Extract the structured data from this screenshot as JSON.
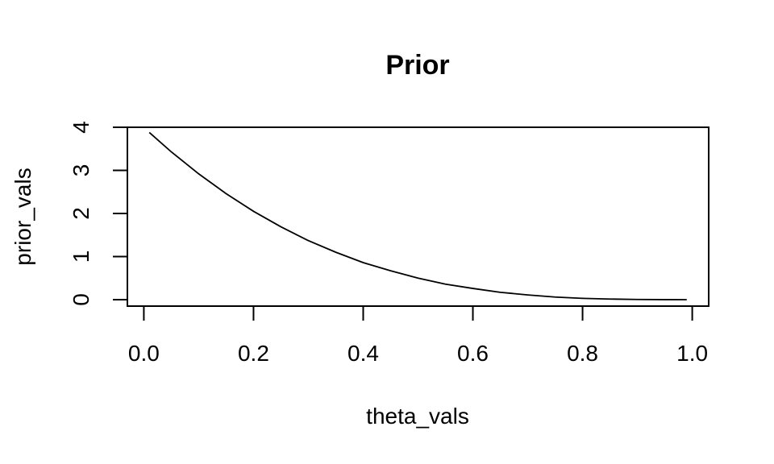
{
  "chart_data": {
    "type": "line",
    "title": "Prior",
    "xlabel": "theta_vals",
    "ylabel": "prior_vals",
    "xlim": [
      -0.03,
      1.03
    ],
    "ylim": [
      -0.15,
      4.0
    ],
    "x_ticks": [
      0.0,
      0.2,
      0.4,
      0.6,
      0.8,
      1.0
    ],
    "x_tick_labels": [
      "0.0",
      "0.2",
      "0.4",
      "0.6",
      "0.8",
      "1.0"
    ],
    "y_ticks": [
      0,
      1,
      2,
      3,
      4
    ],
    "y_tick_labels": [
      "0",
      "1",
      "2",
      "3",
      "4"
    ],
    "grid": false,
    "series": [
      {
        "color": "#000000",
        "x": [
          0.01,
          0.05,
          0.1,
          0.15,
          0.2,
          0.25,
          0.3,
          0.35,
          0.4,
          0.45,
          0.5,
          0.55,
          0.6,
          0.65,
          0.7,
          0.75,
          0.8,
          0.85,
          0.9,
          0.95,
          0.99
        ],
        "y": [
          3.88,
          3.43,
          2.92,
          2.46,
          2.05,
          1.69,
          1.37,
          1.1,
          0.86,
          0.67,
          0.5,
          0.36,
          0.26,
          0.17,
          0.11,
          0.06,
          0.03,
          0.014,
          0.004,
          0.0005,
          0.0
        ]
      }
    ]
  }
}
